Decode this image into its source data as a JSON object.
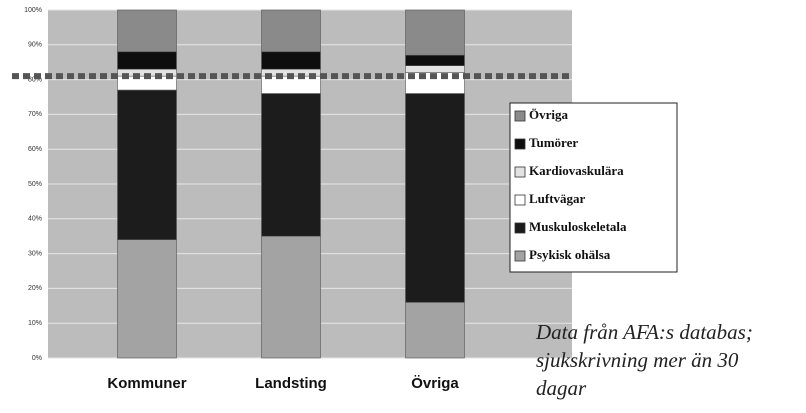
{
  "chart_data": {
    "type": "stacked_bar",
    "categories": [
      "Kommuner",
      "Landsting",
      "Övriga"
    ],
    "series": [
      {
        "name": "Psykisk ohälsa",
        "color": "#a3a3a3",
        "values": [
          34,
          35,
          16
        ]
      },
      {
        "name": "Muskuloskeletala",
        "color": "#1c1c1c",
        "values": [
          43,
          41,
          60
        ]
      },
      {
        "name": "Luftvägar",
        "color": "#ffffff",
        "values": [
          4,
          5,
          6
        ]
      },
      {
        "name": "Kardiovaskulära",
        "color": "#e2e2e2",
        "values": [
          2,
          2,
          2
        ]
      },
      {
        "name": "Tumörer",
        "color": "#0e0e0e",
        "values": [
          5,
          5,
          3
        ]
      },
      {
        "name": "Övriga",
        "color": "#8a8a8a",
        "values": [
          12,
          12,
          13
        ]
      }
    ],
    "ylim": [
      0,
      100
    ],
    "yticks": [
      {
        "value": 0,
        "label": "0%"
      },
      {
        "value": 10,
        "label": "10%"
      },
      {
        "value": 20,
        "label": "20%"
      },
      {
        "value": 30,
        "label": "30%"
      },
      {
        "value": 40,
        "label": "40%"
      },
      {
        "value": 50,
        "label": "50%"
      },
      {
        "value": 60,
        "label": "60%"
      },
      {
        "value": 70,
        "label": "70%"
      },
      {
        "value": 80,
        "label": "80%"
      },
      {
        "value": 90,
        "label": "90%"
      },
      {
        "value": 100,
        "label": "100%"
      }
    ],
    "grid": true,
    "reference_line": 81,
    "legend": "right",
    "annotation": [
      "Data från AFA:s databas;",
      "sjukskrivning mer än 30",
      "dagar"
    ]
  }
}
